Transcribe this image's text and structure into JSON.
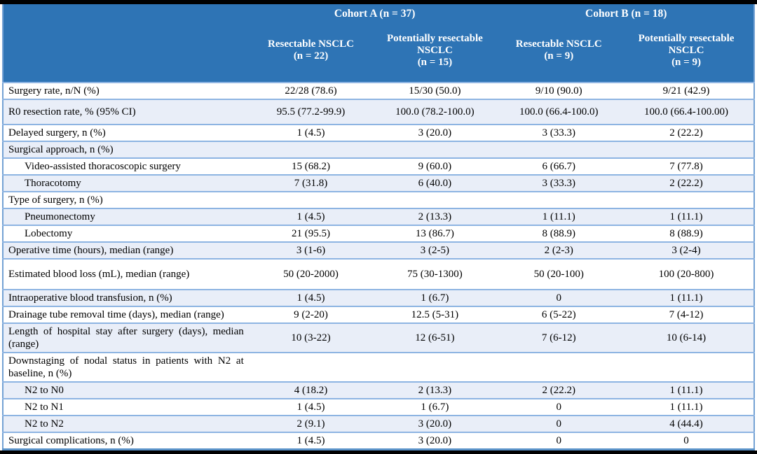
{
  "colors": {
    "header_bg": "#2e74b5",
    "header_text": "#ffffff",
    "band_row_bg": "#e9eef8",
    "row_border": "#8db4e2",
    "outer_border": "#74a2d4",
    "frame_bars": "#000000"
  },
  "table": {
    "header": {
      "cohortA": "Cohort A (n = 37)",
      "cohortB": "Cohort B (n = 18)",
      "cols": [
        {
          "title": "Resectable NSCLC",
          "n": "(n = 22)"
        },
        {
          "title": "Potentially resectable NSCLC",
          "n": "(n = 15)"
        },
        {
          "title": "Resectable NSCLC",
          "n": "(n = 9)"
        },
        {
          "title": "Potentially resectable NSCLC",
          "n": "(n = 9)"
        }
      ]
    },
    "rows": [
      {
        "label": "Surgery rate, n/N (%)",
        "values": [
          "22/28 (78.6)",
          "15/30 (50.0)",
          "9/10 (90.0)",
          "9/21 (42.9)"
        ]
      },
      {
        "label": "R0 resection rate, % (95% CI)",
        "size": "lg",
        "values": [
          "95.5 (77.2-99.9)",
          "100.0 (78.2-100.0)",
          "100.0 (66.4-100.0)",
          "100.0 (66.4-100.00)"
        ]
      },
      {
        "label": "Delayed surgery, n (%)",
        "values": [
          "1 (4.5)",
          "3 (20.0)",
          "3 (33.3)",
          "2 (22.2)"
        ]
      },
      {
        "label": "Surgical approach, n (%)",
        "group": true,
        "values": [
          "",
          "",
          "",
          ""
        ]
      },
      {
        "label": "Video-assisted thoracoscopic surgery",
        "indent": true,
        "values": [
          "15 (68.2)",
          "9 (60.0)",
          "6 (66.7)",
          "7 (77.8)"
        ]
      },
      {
        "label": "Thoracotomy",
        "indent": true,
        "values": [
          "7 (31.8)",
          "6 (40.0)",
          "3 (33.3)",
          "2 (22.2)"
        ]
      },
      {
        "label": "Type of surgery, n (%)",
        "group": true,
        "values": [
          "",
          "",
          "",
          ""
        ]
      },
      {
        "label": "Pneumonectomy",
        "indent": true,
        "values": [
          "1 (4.5)",
          "2 (13.3)",
          "1 (11.1)",
          "1 (11.1)"
        ]
      },
      {
        "label": "Lobectomy",
        "indent": true,
        "values": [
          "21 (95.5)",
          "13 (86.7)",
          "8 (88.9)",
          "8 (88.9)"
        ]
      },
      {
        "label": "Operative time (hours), median (range)",
        "values": [
          "3 (1-6)",
          "3 (2-5)",
          "2 (2-3)",
          "3 (2-4)"
        ]
      },
      {
        "label": "Estimated blood loss (mL), median (range)",
        "size": "xl",
        "values": [
          "50 (20-2000)",
          "75 (30-1300)",
          "50 (20-100)",
          "100 (20-800)"
        ]
      },
      {
        "label": "Intraoperative blood transfusion, n (%)",
        "values": [
          "1 (4.5)",
          "1 (6.7)",
          "0",
          "1 (11.1)"
        ]
      },
      {
        "label": "Drainage tube removal time (days), median (range)",
        "values": [
          "9 (2-20)",
          "12.5 (5-31)",
          "6 (5-22)",
          "7 (4-12)"
        ]
      },
      {
        "label": "Length of hospital stay after surgery (days), median (range)",
        "values": [
          "10 (3-22)",
          "12 (6-51)",
          "7 (6-12)",
          "10 (6-14)"
        ]
      },
      {
        "label": "Downstaging of nodal status in patients with N2 at baseline, n (%)",
        "group": true,
        "values": [
          "",
          "",
          "",
          ""
        ]
      },
      {
        "label": "N2 to N0",
        "indent": true,
        "values": [
          "4 (18.2)",
          "2 (13.3)",
          "2 (22.2)",
          "1 (11.1)"
        ]
      },
      {
        "label": "N2 to N1",
        "indent": true,
        "values": [
          "1 (4.5)",
          "1 (6.7)",
          "0",
          "1 (11.1)"
        ]
      },
      {
        "label": "N2 to N2",
        "indent": true,
        "values": [
          "2 (9.1)",
          "3 (20.0)",
          "0",
          "4 (44.4)"
        ]
      },
      {
        "label": "Surgical complications, n (%)",
        "values": [
          "1 (4.5)",
          "3 (20.0)",
          "0",
          "0"
        ]
      }
    ]
  }
}
